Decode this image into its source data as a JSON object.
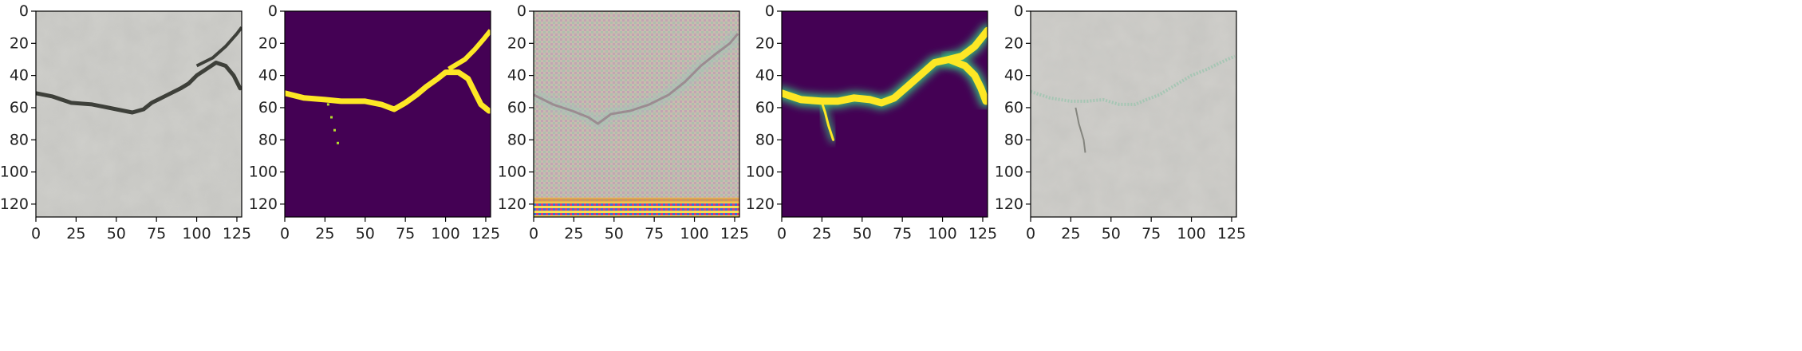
{
  "figure": {
    "panel_count": 5
  },
  "chart_data": [
    {
      "type": "heatmap",
      "panel": "input-image",
      "description": "RGB concrete surface image with a crack",
      "xlim": [
        0,
        128
      ],
      "ylim": [
        128,
        0
      ],
      "xticks": [
        0,
        25,
        50,
        75,
        100,
        125
      ],
      "yticks": [
        0,
        20,
        40,
        60,
        80,
        100,
        120
      ],
      "crack_polyline": [
        [
          0,
          51
        ],
        [
          10,
          53
        ],
        [
          22,
          57
        ],
        [
          35,
          58
        ],
        [
          50,
          61
        ],
        [
          60,
          63
        ],
        [
          67,
          61
        ],
        [
          72,
          57
        ],
        [
          80,
          53
        ],
        [
          90,
          48
        ],
        [
          95,
          45
        ],
        [
          100,
          40
        ],
        [
          106,
          36
        ],
        [
          112,
          32
        ],
        [
          118,
          34
        ],
        [
          123,
          40
        ],
        [
          127,
          48
        ]
      ],
      "crack_branch": [
        [
          100,
          34
        ],
        [
          110,
          29
        ],
        [
          118,
          22
        ],
        [
          125,
          14
        ],
        [
          128,
          10
        ]
      ],
      "palette": {
        "base": "#cfcfcb",
        "crack": "#3e403a"
      }
    },
    {
      "type": "heatmap",
      "panel": "ground-truth-mask",
      "description": "Binary mask, viridis colormap",
      "xlim": [
        0,
        128
      ],
      "ylim": [
        128,
        0
      ],
      "xticks": [
        0,
        25,
        50,
        75,
        100,
        125
      ],
      "yticks": [
        0,
        20,
        40,
        60,
        80,
        100,
        120
      ],
      "crack_polyline": [
        [
          0,
          51
        ],
        [
          12,
          54
        ],
        [
          25,
          55
        ],
        [
          35,
          56
        ],
        [
          50,
          56
        ],
        [
          60,
          58
        ],
        [
          68,
          61
        ],
        [
          75,
          57
        ],
        [
          82,
          52
        ],
        [
          88,
          47
        ],
        [
          95,
          42
        ],
        [
          100,
          38
        ],
        [
          108,
          38
        ],
        [
          114,
          42
        ],
        [
          118,
          50
        ],
        [
          122,
          58
        ],
        [
          127,
          62
        ]
      ],
      "crack_branch": [
        [
          102,
          36
        ],
        [
          112,
          30
        ],
        [
          118,
          24
        ],
        [
          124,
          17
        ],
        [
          128,
          12
        ]
      ],
      "spur": [
        [
          27,
          58
        ],
        [
          29,
          66
        ],
        [
          31,
          74
        ],
        [
          33,
          82
        ]
      ],
      "palette": {
        "background": "#440154",
        "foreground": "#fde725",
        "edge": "#b5de2b"
      }
    },
    {
      "type": "heatmap",
      "panel": "feature-visualization",
      "description": "Noisy reconstructed RGB image with checkerboard artifacts",
      "xlim": [
        0,
        128
      ],
      "ylim": [
        128,
        0
      ],
      "xticks": [
        0,
        25,
        50,
        75,
        100,
        125
      ],
      "yticks": [
        0,
        20,
        40,
        60,
        80,
        100,
        120
      ],
      "crack_polyline": [
        [
          0,
          52
        ],
        [
          12,
          58
        ],
        [
          24,
          62
        ],
        [
          34,
          66
        ],
        [
          40,
          70
        ],
        [
          48,
          64
        ],
        [
          60,
          62
        ],
        [
          72,
          58
        ],
        [
          84,
          52
        ],
        [
          94,
          44
        ],
        [
          104,
          34
        ],
        [
          114,
          26
        ],
        [
          122,
          20
        ],
        [
          127,
          14
        ]
      ],
      "palette": {
        "base": "#cdbcae",
        "tint": "#d7b3a6",
        "accent": "#a2c4b7",
        "bottom_band": "#e1a84a"
      }
    },
    {
      "type": "heatmap",
      "panel": "predicted-mask",
      "description": "Predicted crack probability, viridis colormap",
      "xlim": [
        0,
        128
      ],
      "ylim": [
        128,
        0
      ],
      "xticks": [
        0,
        25,
        50,
        75,
        100,
        125
      ],
      "yticks": [
        0,
        20,
        40,
        60,
        80,
        100,
        120
      ],
      "crack_polyline": [
        [
          0,
          51
        ],
        [
          12,
          55
        ],
        [
          25,
          56
        ],
        [
          35,
          56
        ],
        [
          45,
          54
        ],
        [
          55,
          55
        ],
        [
          62,
          57
        ],
        [
          70,
          54
        ],
        [
          78,
          47
        ],
        [
          86,
          40
        ],
        [
          95,
          32
        ],
        [
          104,
          30
        ],
        [
          112,
          28
        ],
        [
          120,
          22
        ],
        [
          128,
          12
        ]
      ],
      "crack_branch": [
        [
          104,
          30
        ],
        [
          114,
          34
        ],
        [
          120,
          40
        ],
        [
          124,
          48
        ],
        [
          127,
          56
        ]
      ],
      "spur": [
        [
          25,
          57
        ],
        [
          27,
          63
        ],
        [
          29,
          71
        ],
        [
          32,
          80
        ]
      ],
      "palette": {
        "background": "#440154",
        "foreground": "#fde725",
        "glow": "#35b779"
      }
    },
    {
      "type": "heatmap",
      "panel": "overlay",
      "description": "Input image with faint predicted-crack overlay",
      "xlim": [
        0,
        128
      ],
      "ylim": [
        128,
        0
      ],
      "xticks": [
        0,
        25,
        50,
        75,
        100,
        125
      ],
      "yticks": [
        0,
        20,
        40,
        60,
        80,
        100,
        120
      ],
      "crack_polyline": [
        [
          0,
          50
        ],
        [
          12,
          54
        ],
        [
          25,
          56
        ],
        [
          35,
          56
        ],
        [
          45,
          55
        ],
        [
          55,
          58
        ],
        [
          65,
          58
        ],
        [
          72,
          55
        ],
        [
          80,
          52
        ],
        [
          90,
          46
        ],
        [
          100,
          40
        ],
        [
          110,
          36
        ],
        [
          118,
          32
        ],
        [
          127,
          28
        ]
      ],
      "dark_streaks": [
        [
          [
            28,
            60
          ],
          [
            30,
            70
          ],
          [
            33,
            80
          ],
          [
            34,
            88
          ]
        ]
      ],
      "palette": {
        "base": "#d0cfcb",
        "overlay": "#9fc6b0",
        "crack": "#55574f"
      }
    }
  ]
}
